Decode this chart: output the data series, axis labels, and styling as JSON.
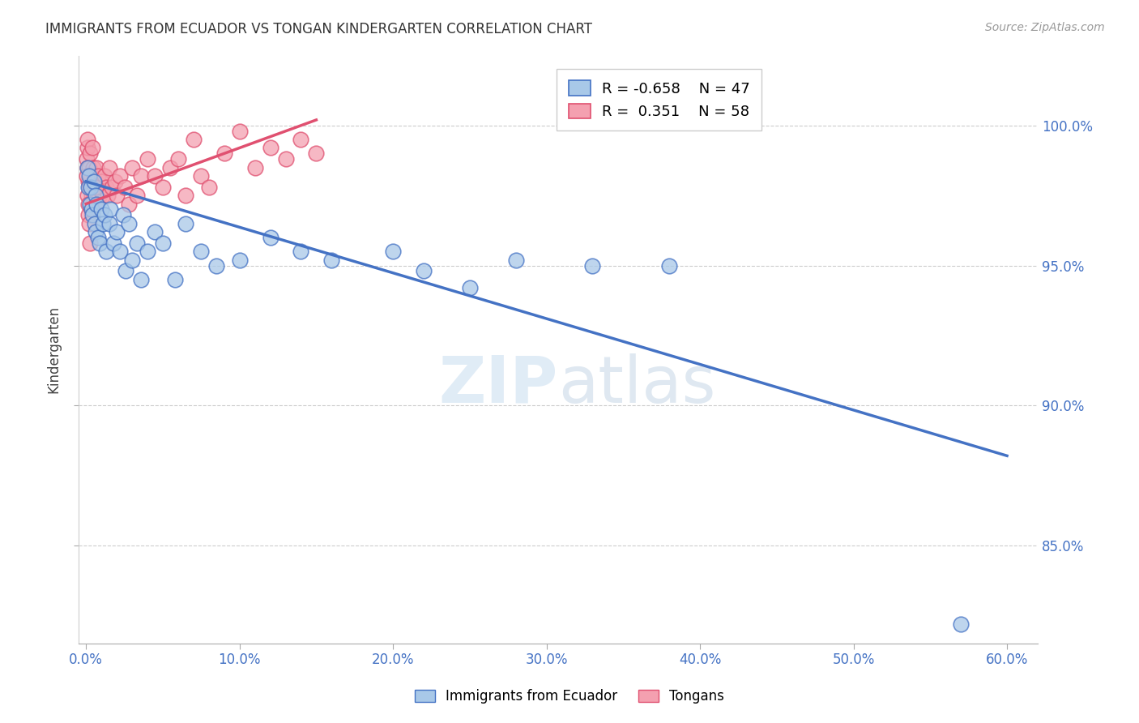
{
  "title": "IMMIGRANTS FROM ECUADOR VS TONGAN KINDERGARTEN CORRELATION CHART",
  "source": "Source: ZipAtlas.com",
  "ylabel": "Kindergarten",
  "xlabel_ticks": [
    "0.0%",
    "10.0%",
    "20.0%",
    "30.0%",
    "40.0%",
    "50.0%",
    "60.0%"
  ],
  "xlabel_vals": [
    0,
    10,
    20,
    30,
    40,
    50,
    60
  ],
  "ytick_labels": [
    "85.0%",
    "90.0%",
    "95.0%",
    "100.0%"
  ],
  "ytick_vals": [
    85,
    90,
    95,
    100
  ],
  "ylim": [
    81.5,
    102.5
  ],
  "xlim": [
    -0.5,
    62
  ],
  "legend_label1": "Immigrants from Ecuador",
  "legend_label2": "Tongans",
  "R1": "-0.658",
  "N1": "47",
  "R2": "0.351",
  "N2": "58",
  "color_blue": "#a8c8e8",
  "color_pink": "#f4a0b0",
  "color_blue_line": "#4472c4",
  "color_pink_line": "#e05070",
  "color_axis_labels": "#4472c4",
  "watermark_zip": "ZIP",
  "watermark_atlas": "atlas",
  "blue_trend_x0": 0,
  "blue_trend_x1": 60,
  "blue_trend_y0": 98.0,
  "blue_trend_y1": 88.2,
  "pink_trend_x0": 0,
  "pink_trend_x1": 15,
  "pink_trend_y0": 97.2,
  "pink_trend_y1": 100.2,
  "blue_x": [
    0.1,
    0.15,
    0.2,
    0.25,
    0.3,
    0.35,
    0.4,
    0.5,
    0.55,
    0.6,
    0.65,
    0.7,
    0.8,
    0.9,
    1.0,
    1.1,
    1.2,
    1.3,
    1.5,
    1.6,
    1.8,
    2.0,
    2.2,
    2.4,
    2.6,
    2.8,
    3.0,
    3.3,
    3.6,
    4.0,
    4.5,
    5.0,
    5.8,
    6.5,
    7.5,
    8.5,
    10.0,
    12.0,
    14.0,
    16.0,
    20.0,
    22.0,
    25.0,
    28.0,
    33.0,
    38.0,
    57.0
  ],
  "blue_y": [
    98.5,
    97.8,
    98.2,
    97.2,
    97.8,
    97.0,
    96.8,
    98.0,
    96.5,
    97.5,
    96.2,
    97.2,
    96.0,
    95.8,
    97.0,
    96.5,
    96.8,
    95.5,
    96.5,
    97.0,
    95.8,
    96.2,
    95.5,
    96.8,
    94.8,
    96.5,
    95.2,
    95.8,
    94.5,
    95.5,
    96.2,
    95.8,
    94.5,
    96.5,
    95.5,
    95.0,
    95.2,
    96.0,
    95.5,
    95.2,
    95.5,
    94.8,
    94.2,
    95.2,
    95.0,
    95.0,
    82.2
  ],
  "pink_x": [
    0.05,
    0.08,
    0.1,
    0.12,
    0.15,
    0.18,
    0.2,
    0.25,
    0.3,
    0.35,
    0.4,
    0.45,
    0.5,
    0.55,
    0.6,
    0.7,
    0.75,
    0.8,
    0.9,
    1.0,
    1.1,
    1.2,
    1.3,
    1.4,
    1.5,
    1.7,
    1.9,
    2.0,
    2.2,
    2.5,
    2.8,
    3.0,
    3.3,
    3.6,
    4.0,
    4.5,
    5.0,
    5.5,
    6.0,
    6.5,
    7.0,
    7.5,
    8.0,
    9.0,
    10.0,
    11.0,
    12.0,
    13.0,
    14.0,
    15.0,
    0.06,
    0.09,
    0.13,
    0.16,
    0.22,
    0.28,
    0.38,
    0.65
  ],
  "pink_y": [
    98.8,
    99.2,
    98.5,
    99.5,
    98.0,
    98.5,
    97.8,
    99.0,
    98.2,
    97.5,
    99.2,
    98.5,
    97.5,
    98.0,
    97.2,
    98.5,
    97.8,
    98.2,
    97.5,
    98.0,
    97.5,
    98.2,
    97.8,
    97.5,
    98.5,
    97.8,
    98.0,
    97.5,
    98.2,
    97.8,
    97.2,
    98.5,
    97.5,
    98.2,
    98.8,
    98.2,
    97.8,
    98.5,
    98.8,
    97.5,
    99.5,
    98.2,
    97.8,
    99.0,
    99.8,
    98.5,
    99.2,
    98.8,
    99.5,
    99.0,
    98.2,
    97.5,
    97.2,
    96.8,
    96.5,
    95.8,
    97.0,
    97.8
  ]
}
